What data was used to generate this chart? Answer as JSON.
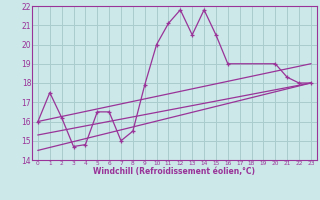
{
  "xlabel": "Windchill (Refroidissement éolien,°C)",
  "bg_color": "#cce8e8",
  "grid_color": "#aacccc",
  "line_color": "#993399",
  "xlim": [
    -0.5,
    23.5
  ],
  "ylim": [
    14,
    22
  ],
  "yticks": [
    14,
    15,
    16,
    17,
    18,
    19,
    20,
    21,
    22
  ],
  "xticks": [
    0,
    1,
    2,
    3,
    4,
    5,
    6,
    7,
    8,
    9,
    10,
    11,
    12,
    13,
    14,
    15,
    16,
    17,
    18,
    19,
    20,
    21,
    22,
    23
  ],
  "series_exact": [
    {
      "x": [
        0,
        1,
        2,
        3,
        4,
        5,
        6,
        7,
        8,
        9,
        10,
        11,
        12,
        13,
        14,
        15,
        16,
        20,
        21,
        22,
        23
      ],
      "y": [
        16.0,
        17.5,
        16.2,
        14.7,
        14.8,
        16.5,
        16.5,
        15.0,
        15.5,
        17.9,
        20.0,
        21.1,
        21.8,
        20.5,
        21.8,
        20.5,
        19.0,
        19.0,
        18.3,
        18.0,
        18.0
      ],
      "marker": true
    },
    {
      "x": [
        0,
        23
      ],
      "y": [
        16.0,
        19.0
      ],
      "marker": false
    },
    {
      "x": [
        0,
        23
      ],
      "y": [
        15.3,
        18.0
      ],
      "marker": false
    },
    {
      "x": [
        0,
        23
      ],
      "y": [
        14.5,
        18.0
      ],
      "marker": false
    }
  ]
}
